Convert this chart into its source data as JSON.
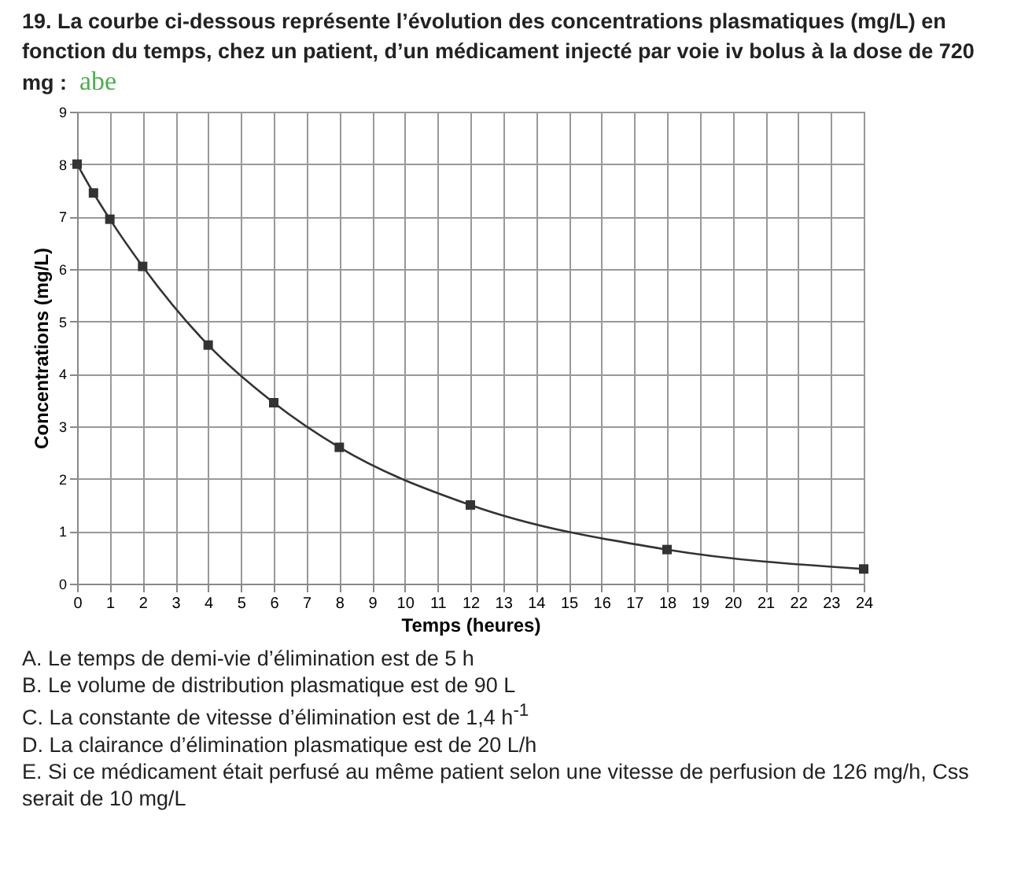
{
  "chart_data": {
    "type": "line",
    "title": "19. La courbe ci-dessous représente l’évolution des concentrations plasmatiques (mg/L) en fonction du temps, chez un patient, d’un médicament injecté par voie iv bolus à la dose de 720 mg :",
    "xlabel": "Temps (heures)",
    "ylabel": "Concentrations (mg/L)",
    "x": [
      0,
      0.5,
      1,
      2,
      4,
      6,
      8,
      12,
      18,
      24
    ],
    "series": [
      {
        "color": "#333333",
        "values": [
          8,
          7.45,
          6.95,
          6.05,
          4.55,
          3.45,
          2.6,
          1.5,
          0.65,
          0.28
        ]
      }
    ],
    "xlim": [
      0,
      24
    ],
    "xticks": [
      0,
      1,
      2,
      3,
      4,
      5,
      6,
      7,
      8,
      9,
      10,
      11,
      12,
      13,
      14,
      15,
      16,
      17,
      18,
      19,
      20,
      21,
      22,
      23,
      24
    ],
    "ylim": [
      0,
      9
    ],
    "yticks": [
      0,
      1,
      2,
      3,
      4,
      5,
      6,
      7,
      8,
      9
    ],
    "grid": true,
    "marker": "square",
    "line_style": "solid",
    "annotations": [
      "abe",
      "A. Le temps de demi-vie d’élimination est de 5 h",
      "B. Le volume de distribution plasmatique est de 90 L",
      "C. La constante de vitesse d’élimination est de 1,4 h$^{-1}$",
      "D. La clairance d’élimination plasmatique est de 20 L/h",
      "E. Si ce médicament était perfusé au même patient selon une vitesse de perfusion de 126 mg/h, Css serait de 10 mg/L"
    ]
  }
}
